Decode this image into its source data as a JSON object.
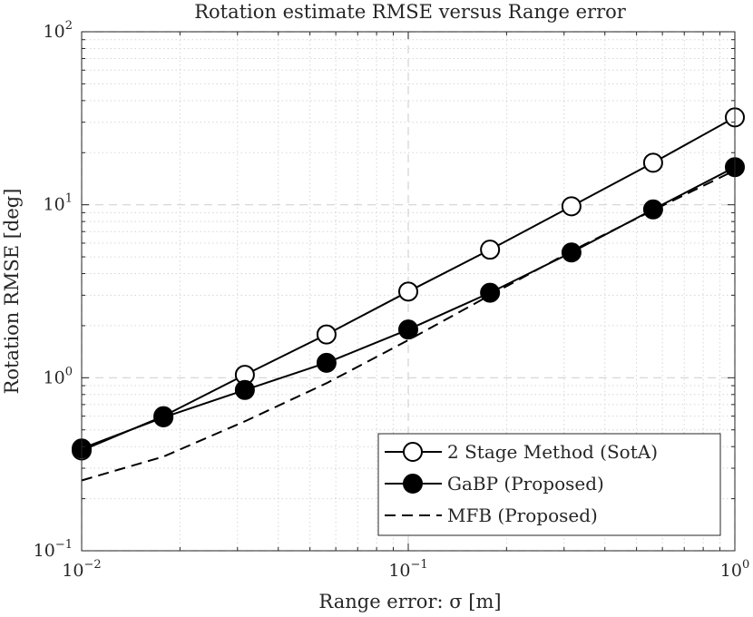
{
  "chart_data": {
    "type": "line",
    "title": "Rotation estimate RMSE versus Range error",
    "xlabel": "Range error: σ [m]",
    "ylabel": "Rotation RMSE [deg]",
    "xscale": "log",
    "yscale": "log",
    "xlim": [
      0.01,
      1
    ],
    "ylim": [
      0.1,
      100
    ],
    "grid": true,
    "minor_grid": true,
    "legend_position": "bottom-right",
    "x_ticks": [
      {
        "value": 0.01,
        "base": "10",
        "exp": "−2"
      },
      {
        "value": 0.1,
        "base": "10",
        "exp": "−1"
      },
      {
        "value": 1,
        "base": "10",
        "exp": "0"
      }
    ],
    "y_ticks": [
      {
        "value": 0.1,
        "base": "10",
        "exp": "−1"
      },
      {
        "value": 1,
        "base": "10",
        "exp": "0"
      },
      {
        "value": 10,
        "base": "10",
        "exp": "1"
      },
      {
        "value": 100,
        "base": "10",
        "exp": "2"
      }
    ],
    "x": [
      0.01,
      0.0178,
      0.0316,
      0.0562,
      0.1,
      0.178,
      0.316,
      0.562,
      1.0
    ],
    "series": [
      {
        "name": "2 Stage Method (SotA)",
        "marker": "open-circle",
        "line": "solid",
        "color": "#000000",
        "values": [
          0.38,
          0.6,
          1.04,
          1.78,
          3.15,
          5.5,
          9.8,
          17.5,
          32.0
        ]
      },
      {
        "name": "GaBP (Proposed)",
        "marker": "filled-circle",
        "line": "solid",
        "color": "#000000",
        "values": [
          0.39,
          0.59,
          0.85,
          1.22,
          1.9,
          3.1,
          5.3,
          9.4,
          16.5
        ]
      },
      {
        "name": "MFB (Proposed)",
        "marker": "none",
        "line": "dashed",
        "color": "#000000",
        "values": [
          0.255,
          0.35,
          0.56,
          0.93,
          1.65,
          3.0,
          5.4,
          9.3,
          15.8
        ]
      }
    ]
  }
}
